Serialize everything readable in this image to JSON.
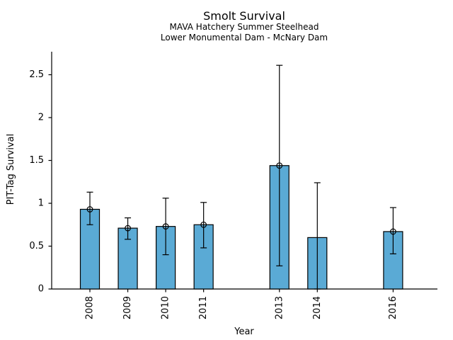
{
  "chart_data": {
    "type": "bar",
    "title": "Smolt Survival",
    "subtitle": [
      "MAVA Hatchery Summer Steelhead",
      "Lower Monumental Dam - McNary Dam"
    ],
    "xlabel": "Year",
    "ylabel": "PIT-Tag Survival",
    "categories": [
      "2008",
      "2009",
      "2010",
      "2011",
      "2013",
      "2014",
      "2016"
    ],
    "x_years": [
      2008,
      2009,
      2010,
      2011,
      2013,
      2014,
      2016
    ],
    "values": [
      0.93,
      0.71,
      0.73,
      0.75,
      1.44,
      0.6,
      0.67
    ],
    "error_low": [
      0.75,
      0.58,
      0.4,
      0.48,
      0.27,
      0.0,
      0.41
    ],
    "error_high": [
      1.13,
      0.83,
      1.06,
      1.01,
      2.61,
      1.24,
      0.95
    ],
    "point_markers": [
      true,
      true,
      true,
      true,
      true,
      false,
      true
    ],
    "yticks": [
      "0",
      "0.5",
      "1",
      "1.5",
      "2",
      "2.5"
    ],
    "ytick_values": [
      0,
      0.5,
      1,
      1.5,
      2,
      2.5
    ],
    "ylim": [
      0,
      2.77
    ],
    "xlim": [
      2007.0,
      2017.2
    ],
    "bar_width_years": 0.5,
    "bar_color": "#5AAAD5",
    "bar_edge_color": "#000000",
    "error_color": "#000000",
    "axis_color": "#000000",
    "text_color": "#000000",
    "grid": false,
    "legend": null
  }
}
